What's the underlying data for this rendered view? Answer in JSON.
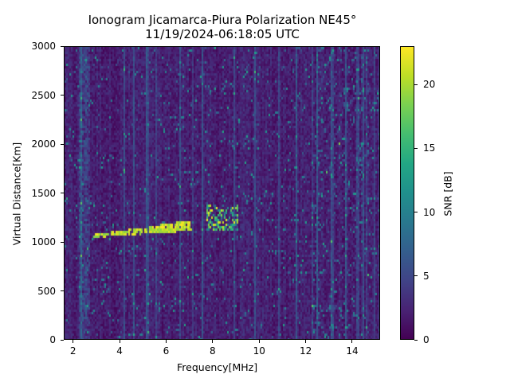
{
  "chart_data": {
    "type": "heatmap",
    "title": "Ionogram Jicamarca-Piura Polarization NE45°",
    "subtitle": "11/19/2024-06:18:05 UTC",
    "xlabel": "Frequency[MHz]",
    "ylabel": "Virtual Distance[Km]",
    "xlim": [
      1.6,
      15.2
    ],
    "ylim": [
      0,
      3000
    ],
    "xticks": [
      2,
      4,
      6,
      8,
      10,
      12,
      14
    ],
    "yticks": [
      0,
      500,
      1000,
      1500,
      2000,
      2500,
      3000
    ],
    "grid": false,
    "colorbar": {
      "label": "SNR [dB]",
      "colormap": "viridis",
      "range": [
        0,
        23
      ],
      "ticks": [
        0,
        5,
        10,
        15,
        20
      ]
    },
    "features": [
      {
        "name": "main trace",
        "freq_start_mhz": 2.8,
        "freq_end_mhz": 7.1,
        "distance_start_km": 1060,
        "distance_end_km": 1170,
        "snr_db": 22
      },
      {
        "name": "diffuse echo",
        "freq_start_mhz": 7.7,
        "freq_end_mhz": 9.1,
        "distance_start_km": 1120,
        "distance_end_km": 1380,
        "snr_db": 14
      },
      {
        "name": "noise band",
        "freq_start_mhz": 12.3,
        "freq_end_mhz": 14.8,
        "distance_start_km": 0,
        "distance_end_km": 3000,
        "snr_db": 6
      }
    ]
  },
  "labels": {
    "title": "Ionogram Jicamarca-Piura Polarization NE45°",
    "subtitle": "11/19/2024-06:18:05 UTC",
    "xlabel": "Frequency[MHz]",
    "ylabel": "Virtual Distance[Km]",
    "cbar_label": "SNR [dB]",
    "xticks": [
      "2",
      "4",
      "6",
      "8",
      "10",
      "12",
      "14"
    ],
    "yticks": [
      "0",
      "500",
      "1000",
      "1500",
      "2000",
      "2500",
      "3000"
    ],
    "cticks": [
      "0",
      "5",
      "10",
      "15",
      "20"
    ]
  }
}
